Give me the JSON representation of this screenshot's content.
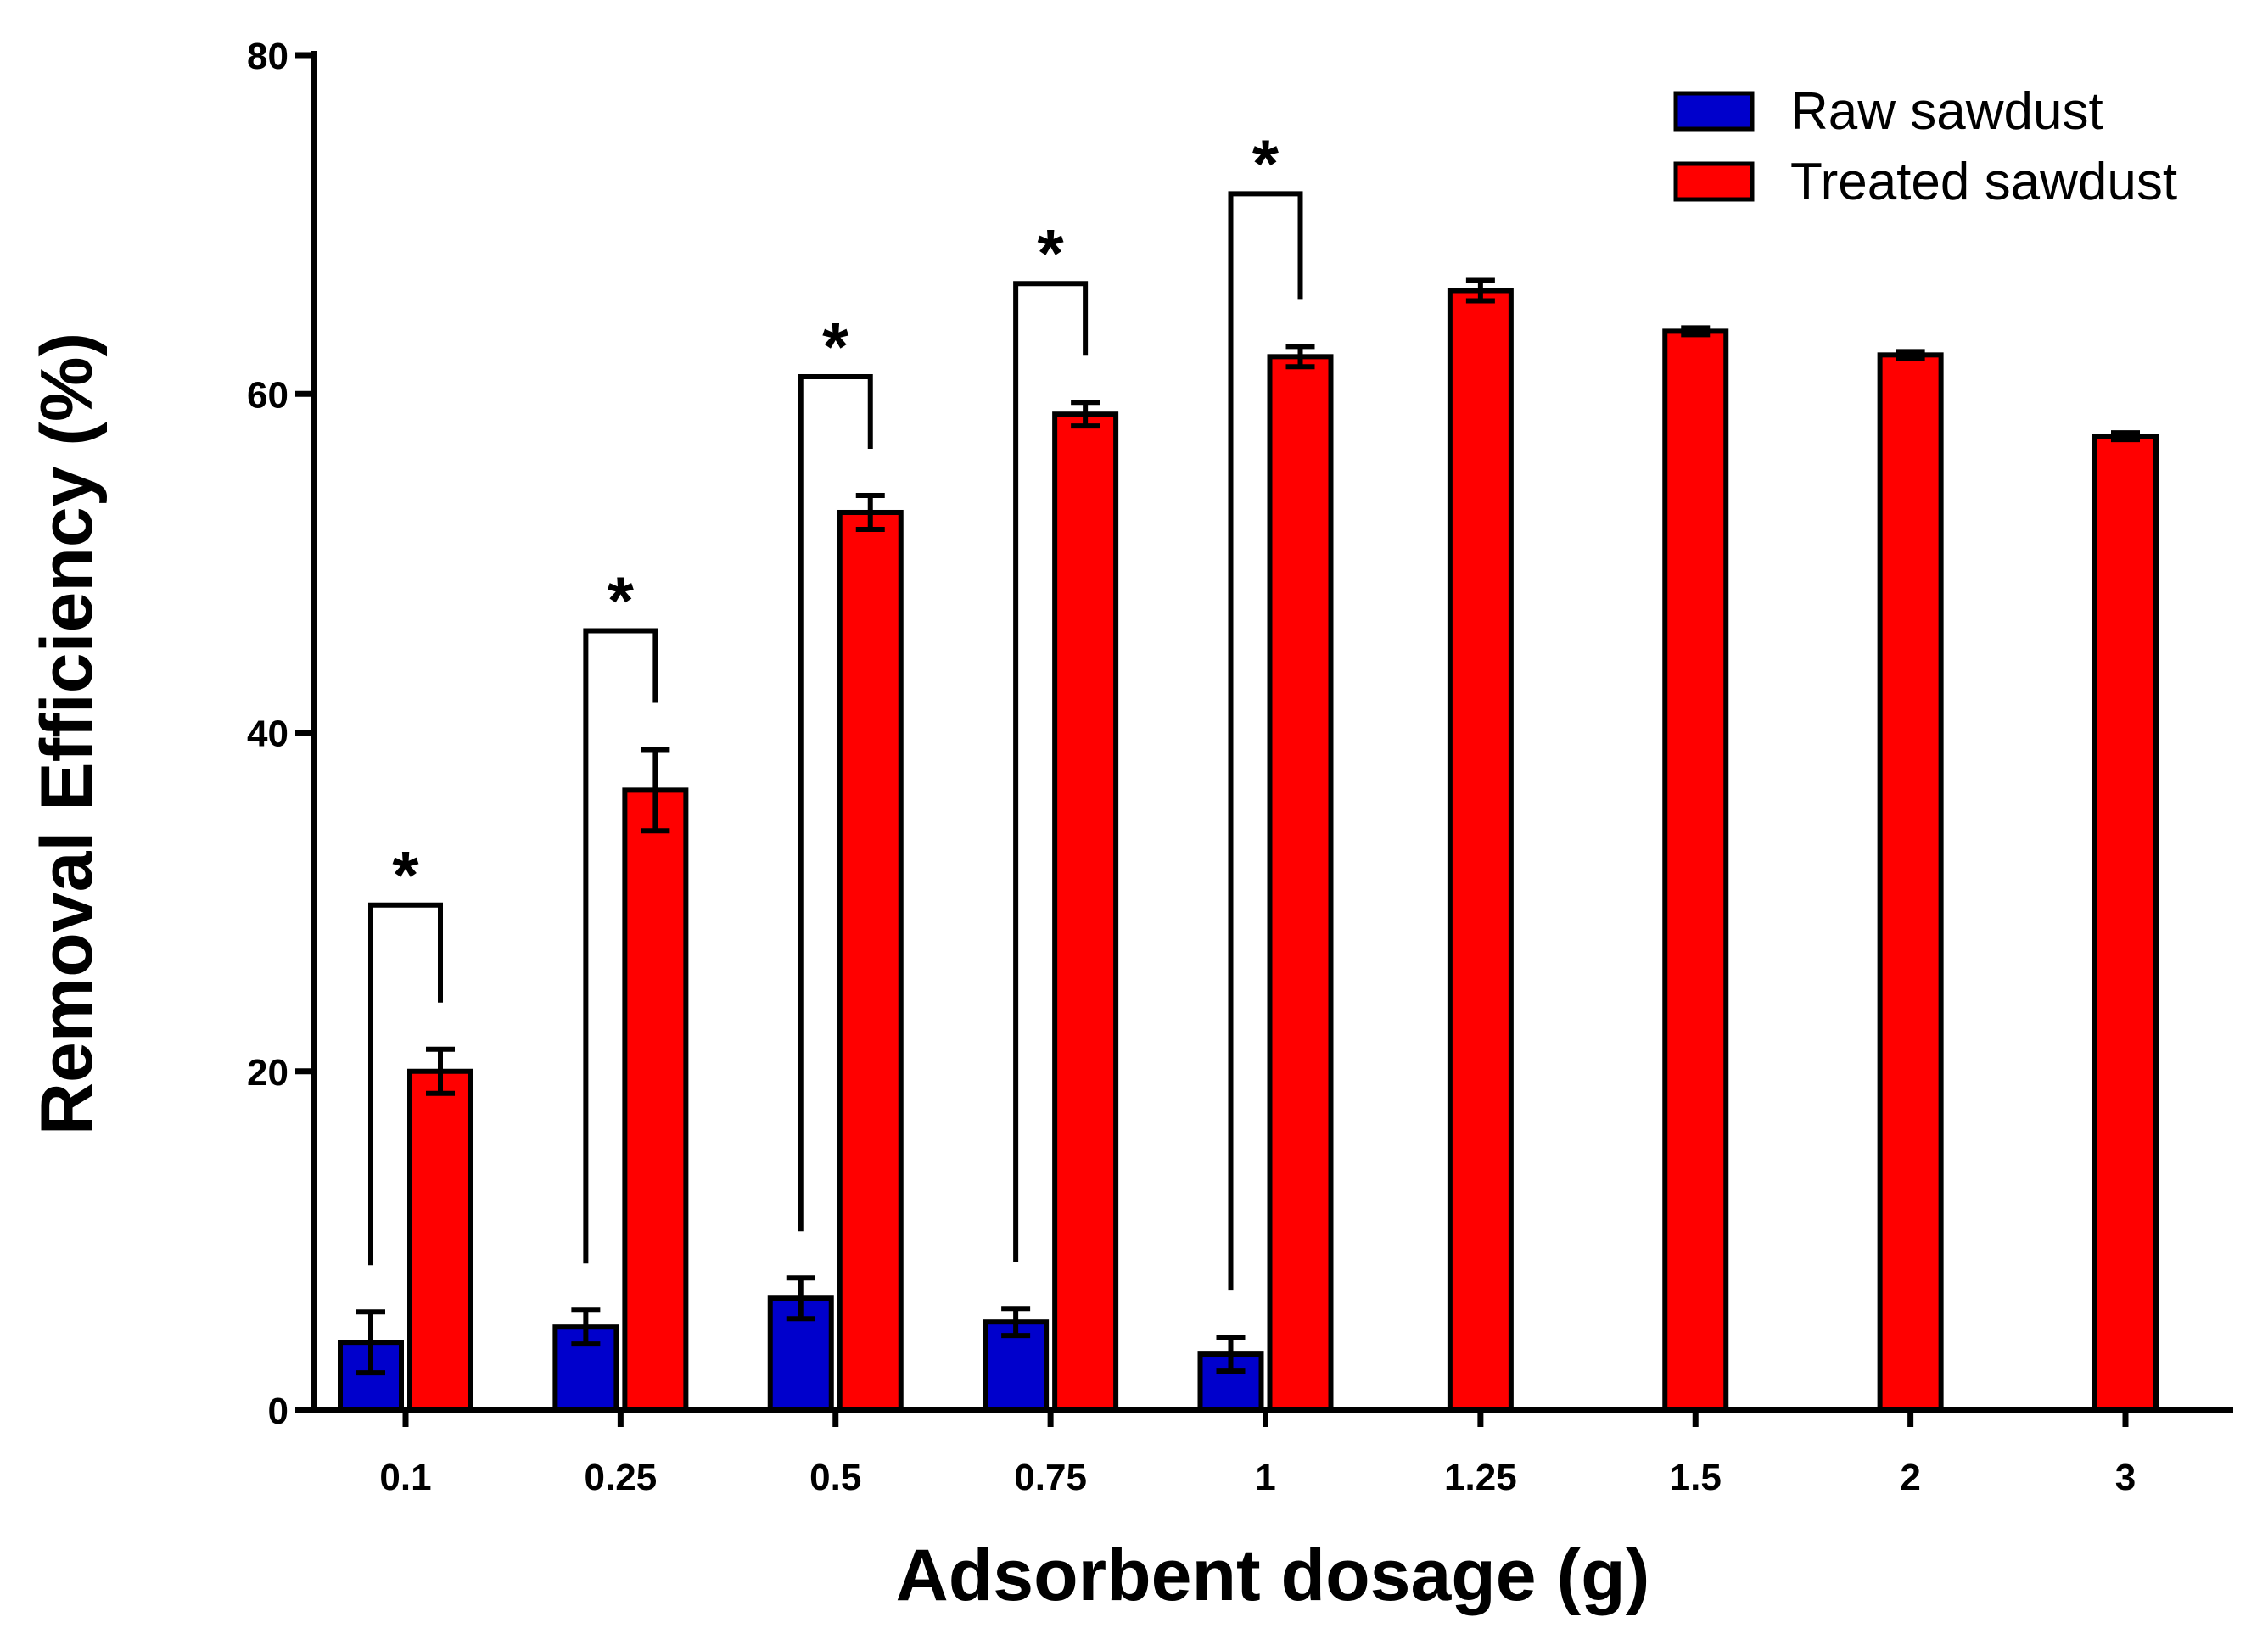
{
  "chart_data": {
    "type": "bar",
    "title": "",
    "xlabel": "Adsorbent dosage (g)",
    "ylabel": "Removal Efficiency (%)",
    "ylim": [
      0,
      80
    ],
    "yticks": [
      0,
      20,
      40,
      60,
      80
    ],
    "categories": [
      "0.1",
      "0.25",
      "0.5",
      "0.75",
      "1",
      "1.25",
      "1.5",
      "2",
      "3"
    ],
    "series": [
      {
        "name": "Raw sawdust",
        "color": "#0000CC",
        "values": [
          4.0,
          4.9,
          6.6,
          5.2,
          3.3,
          null,
          null,
          null,
          null
        ],
        "errors": [
          1.8,
          1.0,
          1.2,
          0.8,
          1.0,
          null,
          null,
          null,
          null
        ]
      },
      {
        "name": "Treated sawdust",
        "color": "#FF0000",
        "values": [
          20.0,
          36.6,
          53.0,
          58.8,
          62.2,
          66.1,
          63.7,
          62.3,
          57.5
        ],
        "errors": [
          1.3,
          2.4,
          1.0,
          0.7,
          0.6,
          0.6,
          0.2,
          0.2,
          0.2
        ]
      }
    ],
    "significance": [
      {
        "category": "0.1",
        "marker": "*"
      },
      {
        "category": "0.25",
        "marker": "*"
      },
      {
        "category": "0.5",
        "marker": "*"
      },
      {
        "category": "0.75",
        "marker": "*"
      },
      {
        "category": "1",
        "marker": "*"
      }
    ],
    "legend_position": "top-right"
  }
}
